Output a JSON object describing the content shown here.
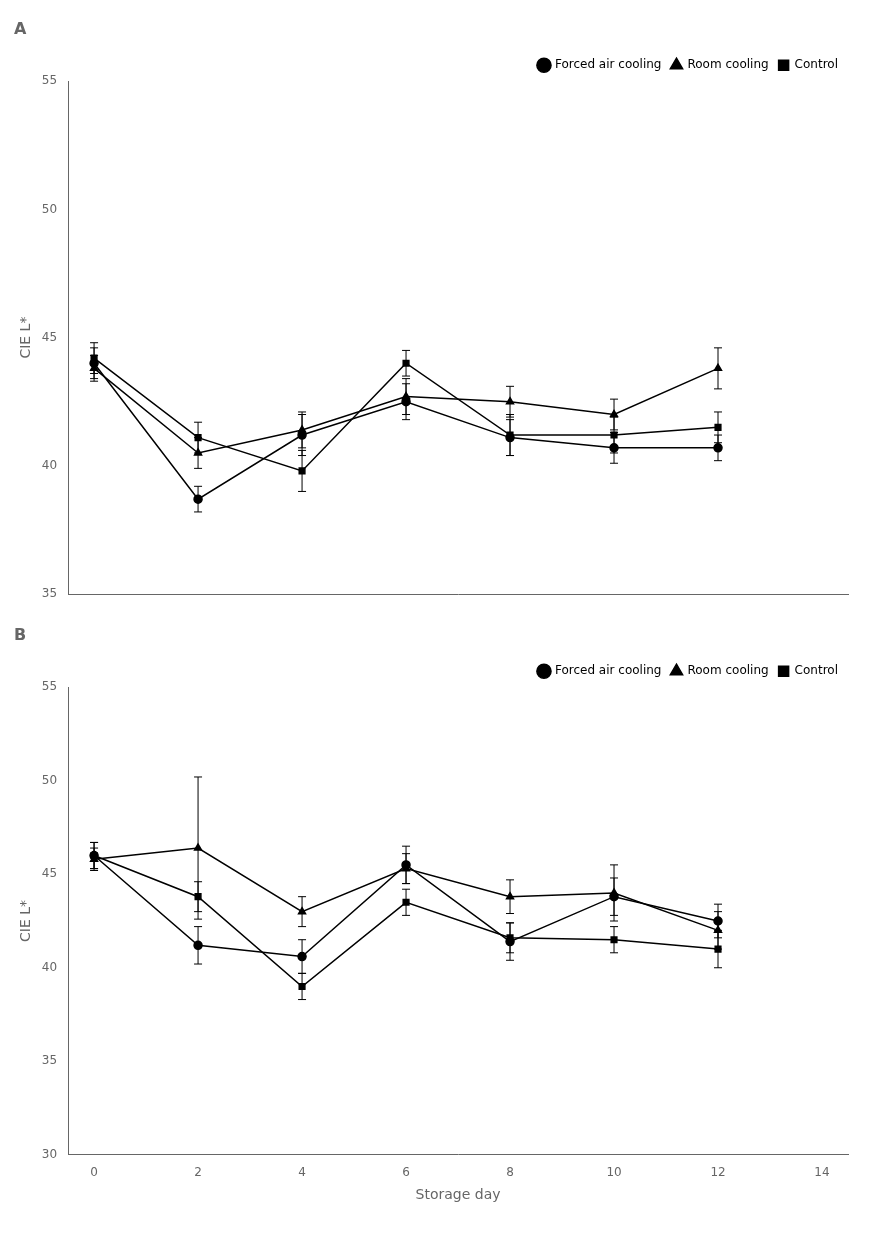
{
  "chart_data": [
    {
      "type": "line",
      "title": "A",
      "y_label": "CIE L*",
      "x": [
        0,
        2,
        4,
        6,
        8,
        10,
        12
      ],
      "series": [
        {
          "name": "Forced air cooling",
          "color": "#000000",
          "marker": "circle",
          "line_style": "solid",
          "values": [
            44.0,
            38.7,
            41.2,
            42.5,
            41.1,
            40.7,
            40.7
          ],
          "errors": [
            0.6,
            0.5,
            0.8,
            0.7,
            0.7,
            0.6,
            0.5
          ]
        },
        {
          "name": "Room cooling",
          "color": "#000000",
          "marker": "triangle",
          "line_style": "solid",
          "values": [
            43.8,
            40.5,
            41.4,
            42.7,
            42.5,
            42.0,
            43.8
          ],
          "errors": [
            0.5,
            0.6,
            0.7,
            0.7,
            0.6,
            0.6,
            0.8
          ]
        },
        {
          "name": "Control",
          "color": "#000000",
          "marker": "square",
          "line_style": "solid",
          "values": [
            44.2,
            41.1,
            39.8,
            44.0,
            41.2,
            41.2,
            41.5
          ],
          "errors": [
            0.6,
            0.6,
            0.8,
            0.5,
            0.8,
            0.7,
            0.6
          ]
        }
      ],
      "xlim": [
        -0.5,
        14.5
      ],
      "xticks": [
        0,
        2,
        4,
        6,
        8,
        10,
        12,
        14
      ],
      "ylim": [
        35,
        55
      ],
      "yticks": [
        35,
        40,
        45,
        50,
        55
      ],
      "tick_labels": "y",
      "grid": false,
      "legend": "upper right"
    },
    {
      "type": "line",
      "title": "B",
      "x_label": "Storage day",
      "y_label": "CIE L*",
      "x": [
        0,
        2,
        4,
        6,
        8,
        10,
        12
      ],
      "series": [
        {
          "name": "Forced air cooling",
          "color": "#000000",
          "marker": "circle",
          "line_style": "solid",
          "values": [
            46.0,
            41.2,
            40.6,
            45.5,
            41.4,
            43.8,
            42.5
          ],
          "errors": [
            0.7,
            1.0,
            0.9,
            1.0,
            1.0,
            1.0,
            0.9
          ]
        },
        {
          "name": "Room cooling",
          "color": "#000000",
          "marker": "triangle",
          "line_style": "solid",
          "values": [
            45.8,
            46.4,
            43.0,
            45.3,
            43.8,
            44.0,
            42.0
          ],
          "errors": [
            0.6,
            3.8,
            0.8,
            0.8,
            0.9,
            1.5,
            1.0
          ]
        },
        {
          "name": "Control",
          "color": "#000000",
          "marker": "square",
          "line_style": "solid",
          "values": [
            46.0,
            43.8,
            39.0,
            43.5,
            41.6,
            41.5,
            41.0
          ],
          "errors": [
            0.7,
            0.8,
            0.7,
            0.7,
            0.8,
            0.7,
            1.0
          ]
        }
      ],
      "xlim": [
        -0.5,
        14.5
      ],
      "xticks": [
        0,
        2,
        4,
        6,
        8,
        10,
        12,
        14
      ],
      "ylim": [
        30,
        55
      ],
      "yticks": [
        30,
        35,
        40,
        45,
        50,
        55
      ],
      "grid": false,
      "legend": "upper right"
    }
  ]
}
